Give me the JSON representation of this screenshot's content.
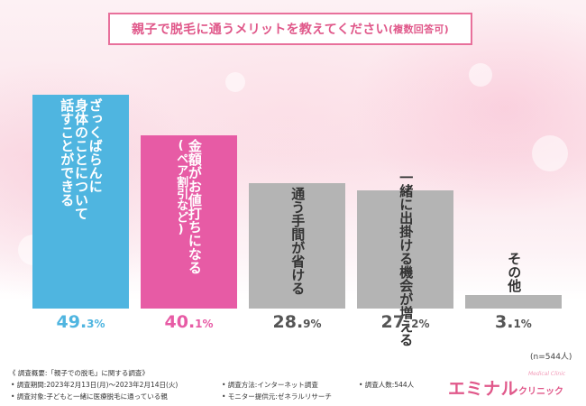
{
  "title": "親子で脱毛に通うメリットを教えてください",
  "title_suffix": "(複数回答可)",
  "note_n": "(n=544人)",
  "chart_data": {
    "type": "bar",
    "title": "親子で脱毛に通うメリットを教えてください(複数回答可)",
    "categories": [
      "ざっくばらんに身体のことについて話すことができる",
      "金額がお値打ちになる(ペア割引など)",
      "通う手間が省ける",
      "一緒に出掛ける機会が増える",
      "その他"
    ],
    "label_lines": [
      [
        "ざっくばらんに",
        "身体のことについて",
        "話すことができる"
      ],
      [
        "金額がお値打ちになる",
        "(ペア割引など)"
      ],
      [
        "通う手間が省ける"
      ],
      [
        "一緒に出掛ける機会が増える"
      ],
      [
        "その他"
      ]
    ],
    "values": [
      49.3,
      40.1,
      28.9,
      27.2,
      3.1
    ],
    "value_labels": [
      {
        "int": "49.",
        "dec": "3%"
      },
      {
        "int": "40.",
        "dec": "1%"
      },
      {
        "int": "28.",
        "dec": "9%"
      },
      {
        "int": "27.",
        "dec": "2%"
      },
      {
        "int": "3.",
        "dec": "1%"
      }
    ],
    "ylim": [
      0,
      50
    ],
    "grid": false,
    "colors": [
      "#4fb5e0",
      "#e75ba5",
      "#b4b4b4",
      "#b4b4b4",
      "#b4b4b4"
    ],
    "value_colors": [
      "#4fb5e0",
      "#e75ba5",
      "#555555",
      "#555555",
      "#555555"
    ]
  },
  "footer": {
    "overview": "《 調査概要:「親子での脱毛」に関する調査》",
    "period": "• 調査期間:2023年2月13日(月)〜2023年2月14日(火)",
    "target": "• 調査対象:子どもと一緒に医療脱毛に通っている親",
    "method": "• 調査方法:インターネット調査",
    "provider": "• モニター提供元:ゼネラルリサーチ",
    "count": "• 調査人数:544人"
  },
  "logo": {
    "main": "エミナル",
    "sub": "クリニック",
    "small": "Medical Clinic"
  }
}
